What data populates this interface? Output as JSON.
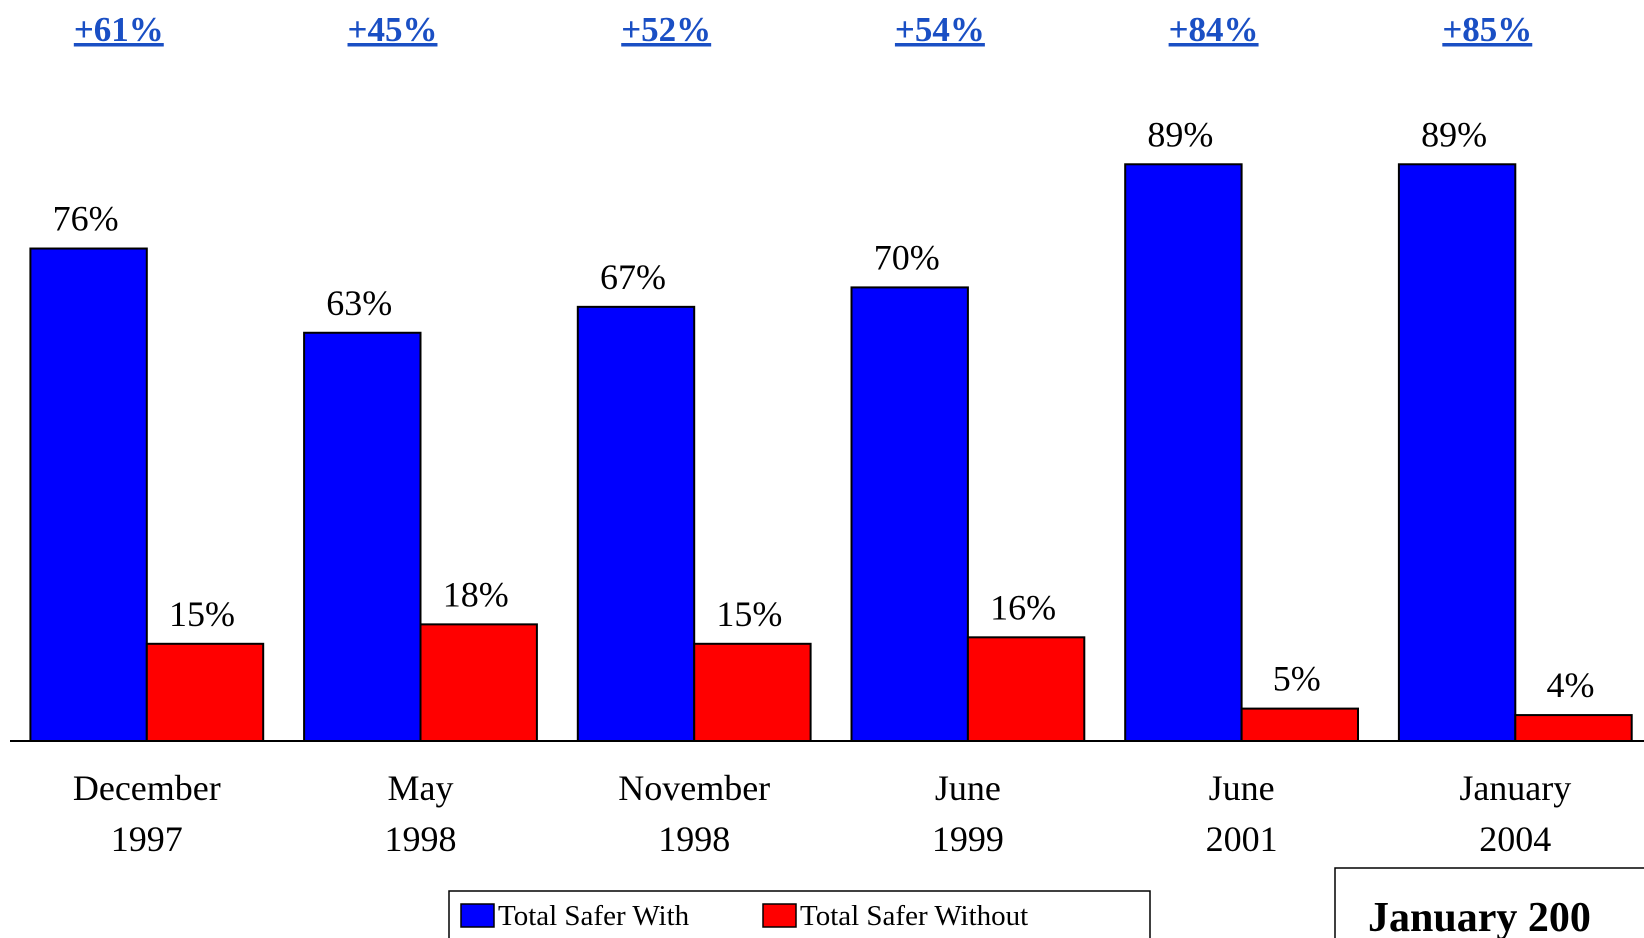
{
  "chart_data": {
    "type": "bar",
    "categories": [
      [
        "December",
        "1997"
      ],
      [
        "May",
        "1998"
      ],
      [
        "November",
        "1998"
      ],
      [
        "June",
        "1999"
      ],
      [
        "June",
        "2001"
      ],
      [
        "January",
        "2004"
      ]
    ],
    "series": [
      {
        "name": "Total Safer With",
        "color": "#0000ff",
        "values": [
          76,
          63,
          67,
          70,
          89,
          89
        ],
        "value_labels": [
          "76%",
          "63%",
          "67%",
          "70%",
          "89%",
          "89%"
        ]
      },
      {
        "name": "Total Safer Without",
        "color": "#ff0000",
        "values": [
          15,
          18,
          15,
          16,
          5,
          4
        ],
        "value_labels": [
          "15%",
          "18%",
          "15%",
          "16%",
          "5%",
          "4%"
        ]
      }
    ],
    "annotations": [
      "+61%",
      "+45%",
      "+52%",
      "+54%",
      "+84%",
      "+85%"
    ],
    "note": "January 200",
    "ylim": [
      0,
      100
    ]
  }
}
